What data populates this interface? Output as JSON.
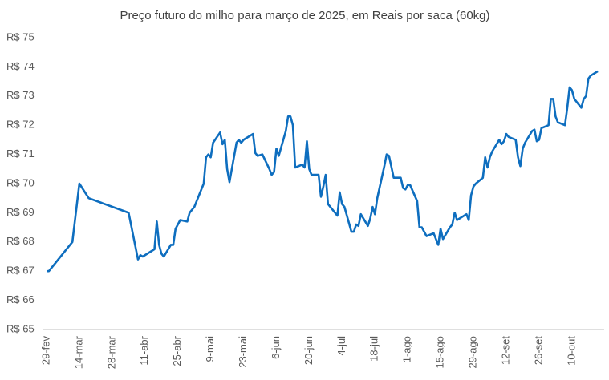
{
  "chart_data": {
    "type": "line",
    "title": "Preço futuro do milho para março de 2025, em Reais por saca (60kg)",
    "x": [
      "29-fev",
      "1-mar",
      "11-mar",
      "14-mar",
      "18-mar",
      "4-abr",
      "8-abr",
      "9-abr",
      "10-abr",
      "15-abr",
      "16-abr",
      "17-abr",
      "18-abr",
      "19-abr",
      "22-abr",
      "23-abr",
      "24-abr",
      "26-abr",
      "29-abr",
      "30-abr",
      "2-mai",
      "6-mai",
      "7-mai",
      "8-mai",
      "9-mai",
      "10-mai",
      "13-mai",
      "14-mai",
      "15-mai",
      "16-mai",
      "17-mai",
      "20-mai",
      "21-mai",
      "22-mai",
      "23-mai",
      "27-mai",
      "28-mai",
      "29-mai",
      "31-mai",
      "3-jun",
      "4-jun",
      "5-jun",
      "6-jun",
      "7-jun",
      "10-jun",
      "11-jun",
      "12-jun",
      "13-jun",
      "14-jun",
      "17-jun",
      "18-jun",
      "19-jun",
      "20-jun",
      "21-jun",
      "24-jun",
      "25-jun",
      "26-jun",
      "27-jun",
      "28-jun",
      "1-jul",
      "2-jul",
      "3-jul",
      "4-jul",
      "5-jul",
      "8-jul",
      "9-jul",
      "10-jul",
      "11-jul",
      "12-jul",
      "15-jul",
      "16-jul",
      "17-jul",
      "18-jul",
      "19-jul",
      "22-jul",
      "23-jul",
      "24-jul",
      "26-jul",
      "29-jul",
      "30-jul",
      "31-jul",
      "1-ago",
      "2-ago",
      "5-ago",
      "6-ago",
      "7-ago",
      "9-ago",
      "12-ago",
      "13-ago",
      "14-ago",
      "15-ago",
      "16-ago",
      "19-ago",
      "20-ago",
      "21-ago",
      "22-ago",
      "26-ago",
      "27-ago",
      "28-ago",
      "29-ago",
      "30-ago",
      "2-set",
      "3-set",
      "4-set",
      "5-set",
      "6-set",
      "9-set",
      "10-set",
      "11-set",
      "12-set",
      "13-set",
      "16-set",
      "17-set",
      "18-set",
      "19-set",
      "20-set",
      "23-set",
      "24-set",
      "25-set",
      "26-set",
      "27-set",
      "30-set",
      "1-out",
      "2-out",
      "3-out",
      "4-out",
      "7-out",
      "8-out",
      "9-out",
      "10-out",
      "11-out",
      "14-out",
      "15-out",
      "16-out",
      "17-out",
      "18-out",
      "21-out"
    ],
    "series": [
      {
        "color": "#0e6ebf",
        "values": [
          67.0,
          67.0,
          68.0,
          70.0,
          69.5,
          69.0,
          67.4,
          67.55,
          67.5,
          67.75,
          68.7,
          67.9,
          67.6,
          67.5,
          67.9,
          67.9,
          68.45,
          68.75,
          68.7,
          69.0,
          69.2,
          70.0,
          70.9,
          71.0,
          70.9,
          71.4,
          71.75,
          71.35,
          71.5,
          70.5,
          70.05,
          71.4,
          71.5,
          71.4,
          71.5,
          71.7,
          71.05,
          70.95,
          71.0,
          70.5,
          70.3,
          70.4,
          71.2,
          70.95,
          71.8,
          72.3,
          72.3,
          72.0,
          70.55,
          70.65,
          70.55,
          71.45,
          70.5,
          70.3,
          70.3,
          69.55,
          69.9,
          70.3,
          69.3,
          69.0,
          68.9,
          69.7,
          69.3,
          69.2,
          68.35,
          68.35,
          68.6,
          68.55,
          68.95,
          68.55,
          68.8,
          69.2,
          68.95,
          69.5,
          70.6,
          71.0,
          70.95,
          70.2,
          70.2,
          69.85,
          69.8,
          69.95,
          69.95,
          69.4,
          68.5,
          68.5,
          68.2,
          68.3,
          68.1,
          67.9,
          68.45,
          68.1,
          68.5,
          68.6,
          69.0,
          68.75,
          68.95,
          68.75,
          69.6,
          69.9,
          70.0,
          70.2,
          70.9,
          70.55,
          70.9,
          71.1,
          71.5,
          71.35,
          71.45,
          71.7,
          71.6,
          71.5,
          70.9,
          70.6,
          71.2,
          71.4,
          71.8,
          71.85,
          71.45,
          71.5,
          71.9,
          72.0,
          72.9,
          72.9,
          72.3,
          72.1,
          72.0,
          72.6,
          73.3,
          73.2,
          72.9,
          72.6,
          72.9,
          73.0,
          73.6,
          73.7,
          73.85
        ]
      }
    ],
    "xticks": [
      "29-fev",
      "14-mar",
      "28-mar",
      "11-abr",
      "25-abr",
      "9-mai",
      "23-mai",
      "6-jun",
      "20-jun",
      "4-jul",
      "18-jul",
      "1-ago",
      "15-ago",
      "29-ago",
      "12-set",
      "26-set",
      "10-out"
    ],
    "ylim": [
      65,
      75
    ],
    "yticks": [
      {
        "value": 65,
        "label": "R$ 65"
      },
      {
        "value": 66,
        "label": "R$ 66"
      },
      {
        "value": 67,
        "label": "R$ 67"
      },
      {
        "value": 68,
        "label": "R$ 68"
      },
      {
        "value": 69,
        "label": "R$ 69"
      },
      {
        "value": 70,
        "label": "R$ 70"
      },
      {
        "value": 71,
        "label": "R$ 71"
      },
      {
        "value": 72,
        "label": "R$ 72"
      },
      {
        "value": 73,
        "label": "R$ 73"
      },
      {
        "value": 74,
        "label": "R$ 74"
      },
      {
        "value": 75,
        "label": "R$ 75"
      }
    ],
    "grid": false
  }
}
